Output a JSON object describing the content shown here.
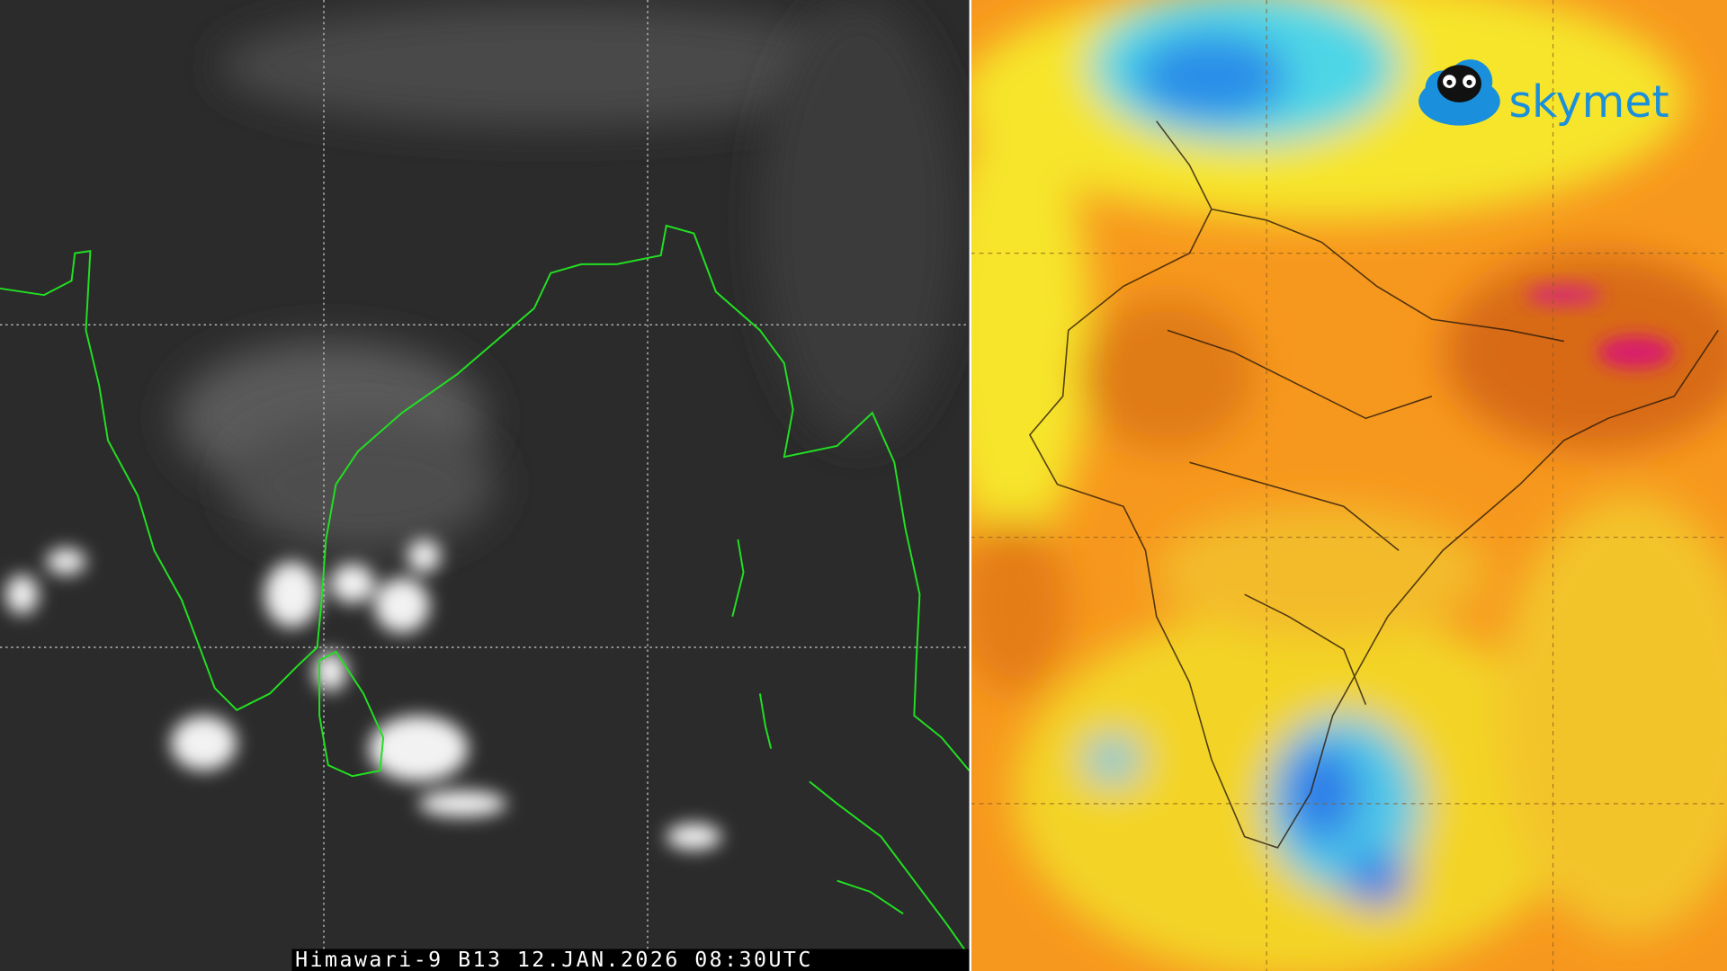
{
  "left_panel": {
    "caption": "Himawari-9 B13 12.JAN.2026 08:30UTC"
  },
  "right_panel": {
    "logo": "skymet"
  }
}
